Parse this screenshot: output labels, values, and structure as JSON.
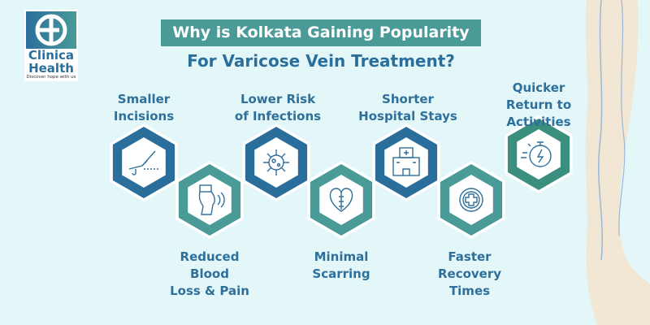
{
  "brand": {
    "name_line1": "Clinica",
    "name_line2": "Health",
    "tagline": "Discover hope with us"
  },
  "title": {
    "line1": "Why is Kolkata Gaining Popularity",
    "line2": "For Varicose Vein Treatment?"
  },
  "colors": {
    "blue": "#2a6f9c",
    "teal": "#4a9a98",
    "green": "#3a8f7f",
    "text": "#2f6f9b",
    "background": "#e3f7f9"
  },
  "benefits": [
    {
      "label": "Smaller\nIncisions",
      "icon": "scalpel-icon",
      "color": "blue"
    },
    {
      "label": "Reduced\nBlood\nLoss & Pain",
      "icon": "knee-pain-icon",
      "color": "teal"
    },
    {
      "label": "Lower Risk\nof Infections",
      "icon": "virus-icon",
      "color": "blue"
    },
    {
      "label": "Minimal\nScarring",
      "icon": "stitched-heart-icon",
      "color": "teal"
    },
    {
      "label": "Shorter\nHospital Stays",
      "icon": "hospital-icon",
      "color": "blue"
    },
    {
      "label": "Faster\nRecovery\nTimes",
      "icon": "recovery-cross-icon",
      "color": "teal"
    },
    {
      "label": "Quicker\nReturn to\nActivities",
      "icon": "stopwatch-icon",
      "color": "green"
    }
  ]
}
